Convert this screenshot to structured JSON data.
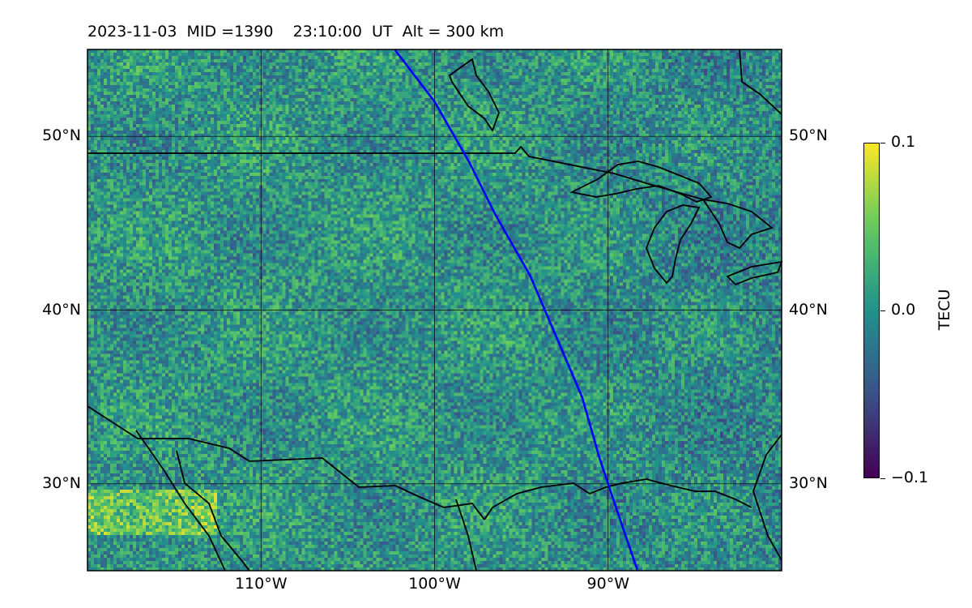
{
  "title": "2023-11-03  MID =1390    23:10:00  UT  Alt = 300 km",
  "map": {
    "lon_range": [
      -120,
      -80
    ],
    "lat_range": [
      25,
      55
    ],
    "lat_ticks": [
      {
        "value": 50,
        "label": "50°N"
      },
      {
        "value": 40,
        "label": "40°N"
      },
      {
        "value": 30,
        "label": "30°N"
      }
    ],
    "lon_ticks": [
      {
        "value": -110,
        "label": "110°W"
      },
      {
        "value": -100,
        "label": "100°W"
      },
      {
        "value": -90,
        "label": "90°W"
      }
    ],
    "gridlines": true,
    "field": "TEC perturbation (noisy, mostly near 0)",
    "colormap": "viridis",
    "track_color": "#0000ff",
    "track_points": [
      [
        -102.3,
        55
      ],
      [
        -100,
        52
      ],
      [
        -98,
        48.5
      ],
      [
        -96.5,
        45.5
      ],
      [
        -94.5,
        42
      ],
      [
        -93,
        38.5
      ],
      [
        -91.5,
        35
      ],
      [
        -90.5,
        31.5
      ],
      [
        -89.5,
        28.5
      ],
      [
        -88.3,
        25
      ]
    ]
  },
  "colorbar": {
    "label": "TECU",
    "vmin": -0.1,
    "vmax": 0.1,
    "ticks": [
      {
        "value": 0.1,
        "label": "0.1"
      },
      {
        "value": 0.0,
        "label": "0.0"
      },
      {
        "value": -0.1,
        "label": "−0.1"
      }
    ]
  }
}
